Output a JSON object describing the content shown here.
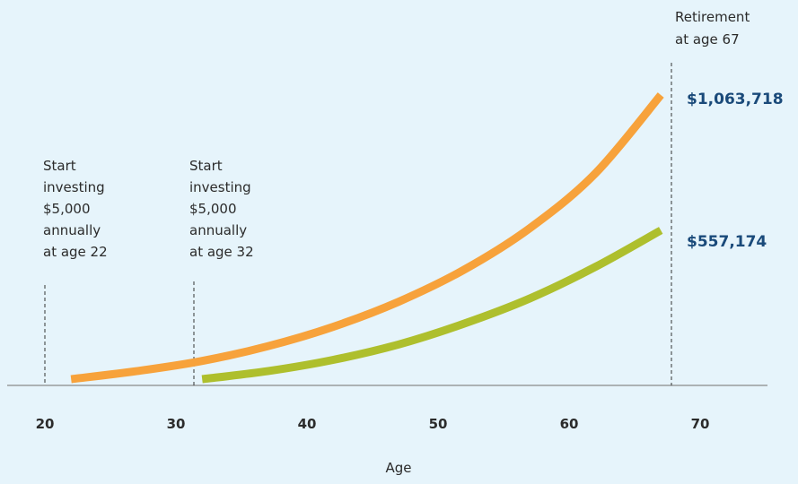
{
  "chart_data": {
    "type": "line",
    "xlabel": "Age",
    "xlim": [
      17,
      74
    ],
    "x_ticks": [
      "20",
      "30",
      "40",
      "50",
      "60",
      "70"
    ],
    "series": [
      {
        "color": "#f7a23b",
        "x": [
          22,
          27,
          32,
          37,
          42,
          47,
          52,
          57,
          62,
          67
        ],
        "y": [
          0,
          30000,
          68000,
          123000,
          196000,
          290000,
          410000,
          565000,
          770000,
          1063718
        ]
      },
      {
        "color": "#aebf2d",
        "x": [
          32,
          37,
          42,
          47,
          52,
          57,
          62,
          67
        ],
        "y": [
          0,
          30000,
          72000,
          130000,
          208000,
          302000,
          420000,
          557174
        ]
      }
    ],
    "value_labels": [
      "$1,063,718",
      "$557,174"
    ],
    "value_label_color": "#1a4a7a",
    "annotations": {
      "start_22": [
        "Start",
        "investing",
        "$5,000",
        "annually",
        "at age 22"
      ],
      "start_32": [
        "Start",
        "investing",
        "$5,000",
        "annually",
        "at age 32"
      ],
      "retirement": [
        "Retirement",
        "at age 67"
      ]
    }
  }
}
